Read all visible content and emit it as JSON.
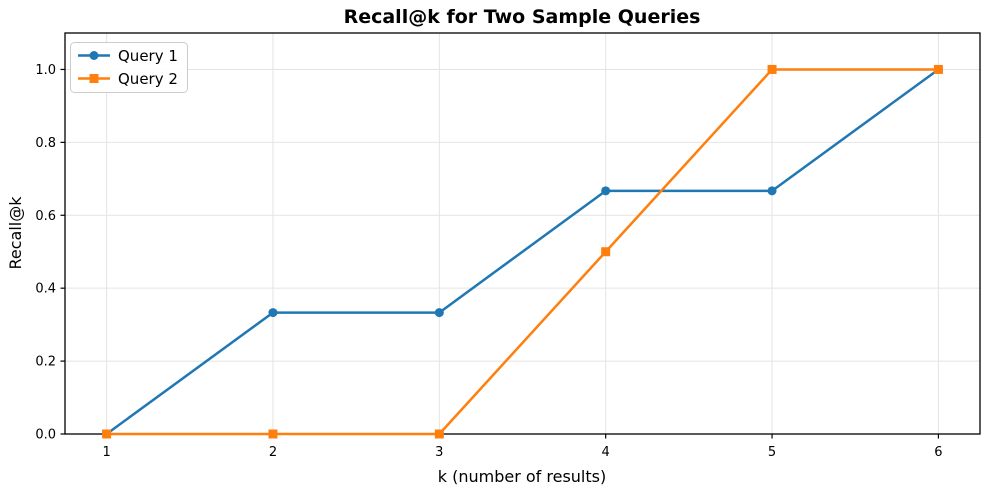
{
  "chart_data": {
    "type": "line",
    "title": "Recall@k for Two Sample Queries",
    "xlabel": "k (number of results)",
    "ylabel": "Recall@k",
    "x": [
      1,
      2,
      3,
      4,
      5,
      6
    ],
    "series": [
      {
        "name": "Query 1",
        "color": "#1f77b4",
        "marker": "circle",
        "values": [
          0.0,
          0.333,
          0.333,
          0.667,
          0.667,
          1.0
        ]
      },
      {
        "name": "Query 2",
        "color": "#ff7f0e",
        "marker": "square",
        "values": [
          0.0,
          0.0,
          0.0,
          0.5,
          1.0,
          1.0
        ]
      }
    ],
    "xlim": [
      0.75,
      6.25
    ],
    "ylim": [
      0,
      1.1
    ],
    "xtick_values": [
      1,
      2,
      3,
      4,
      5,
      6
    ],
    "xtick_labels": [
      "1",
      "2",
      "3",
      "4",
      "5",
      "6"
    ],
    "ytick_values": [
      0.0,
      0.2,
      0.4,
      0.6,
      0.8,
      1.0
    ],
    "ytick_labels": [
      "0.0",
      "0.2",
      "0.4",
      "0.6",
      "0.8",
      "1.0"
    ],
    "grid": true,
    "legend_position": "upper left",
    "line_width": 2.5,
    "colors": {
      "grid": "#e4e4e4",
      "spine": "#000000",
      "tick": "#000000",
      "legend_border": "#cccccc",
      "legend_fill": "#ffffff",
      "background": "#ffffff"
    }
  }
}
